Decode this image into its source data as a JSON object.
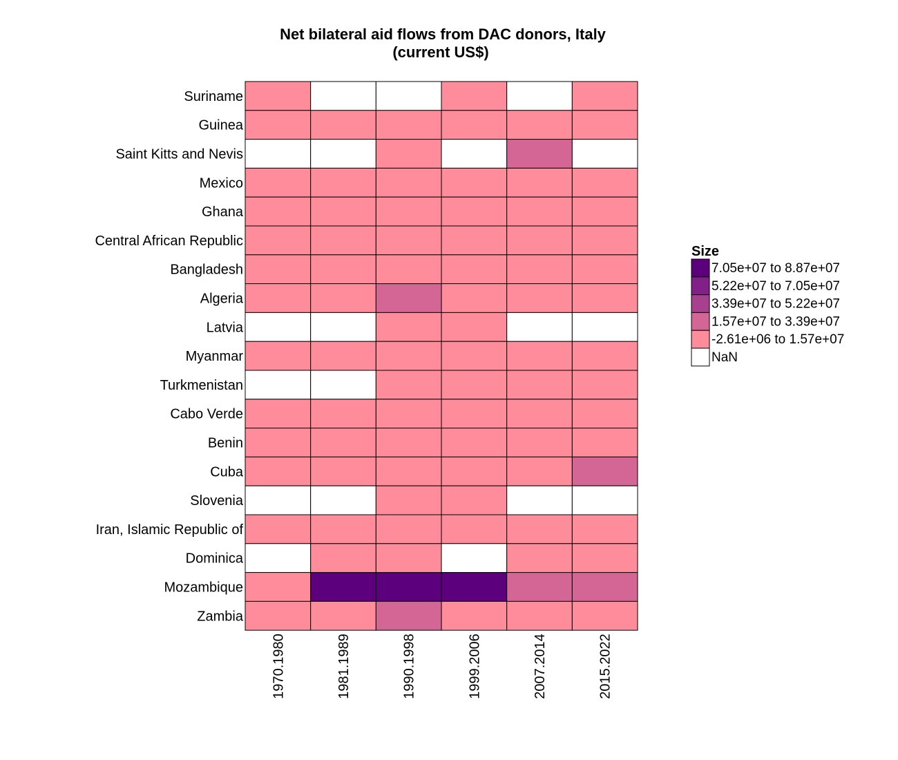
{
  "chart_data": {
    "type": "heatmap",
    "title": "Net bilateral aid flows from DAC donors, Italy",
    "subtitle": "(current US$)",
    "xlabel": "",
    "ylabel": "",
    "rows": [
      "Suriname",
      "Guinea",
      "Saint Kitts and Nevis",
      "Mexico",
      "Ghana",
      "Central African Republic",
      "Bangladesh",
      "Algeria",
      "Latvia",
      "Myanmar",
      "Turkmenistan",
      "Cabo Verde",
      "Benin",
      "Cuba",
      "Slovenia",
      "Iran, Islamic Republic of",
      "Dominica",
      "Mozambique",
      "Zambia"
    ],
    "columns": [
      "1970.1980",
      "1981.1989",
      "1990.1998",
      "1999.2006",
      "2007.2014",
      "2015.2022"
    ],
    "bin_index_matrix": [
      [
        0,
        null,
        null,
        0,
        null,
        0
      ],
      [
        0,
        0,
        0,
        0,
        0,
        0
      ],
      [
        null,
        null,
        0,
        null,
        1,
        null
      ],
      [
        0,
        0,
        0,
        0,
        0,
        0
      ],
      [
        0,
        0,
        0,
        0,
        0,
        0
      ],
      [
        0,
        0,
        0,
        0,
        0,
        0
      ],
      [
        0,
        0,
        0,
        0,
        0,
        0
      ],
      [
        0,
        0,
        1,
        0,
        0,
        0
      ],
      [
        null,
        null,
        0,
        0,
        null,
        null
      ],
      [
        0,
        0,
        0,
        0,
        0,
        0
      ],
      [
        null,
        null,
        0,
        0,
        0,
        0
      ],
      [
        0,
        0,
        0,
        0,
        0,
        0
      ],
      [
        0,
        0,
        0,
        0,
        0,
        0
      ],
      [
        0,
        0,
        0,
        0,
        0,
        1
      ],
      [
        null,
        null,
        0,
        0,
        null,
        null
      ],
      [
        0,
        0,
        0,
        0,
        0,
        0
      ],
      [
        null,
        0,
        0,
        null,
        0,
        0
      ],
      [
        0,
        4,
        4,
        4,
        1,
        1
      ],
      [
        0,
        0,
        1,
        0,
        0,
        0
      ]
    ],
    "legend": {
      "title": "Size",
      "placement": "right",
      "bins": [
        {
          "label": "-2.61e+06 to 1.57e+07",
          "color": "#FF8C9B"
        },
        {
          "label": "1.57e+07 to 3.39e+07",
          "color": "#D46695"
        },
        {
          "label": "3.39e+07 to 5.22e+07",
          "color": "#A93F8F"
        },
        {
          "label": "5.22e+07 to 7.05e+07",
          "color": "#831F88"
        },
        {
          "label": "7.05e+07 to 8.87e+07",
          "color": "#5C007E"
        }
      ],
      "nan": {
        "label": "NaN",
        "color": "#FFFFFF"
      }
    },
    "grid": true
  }
}
